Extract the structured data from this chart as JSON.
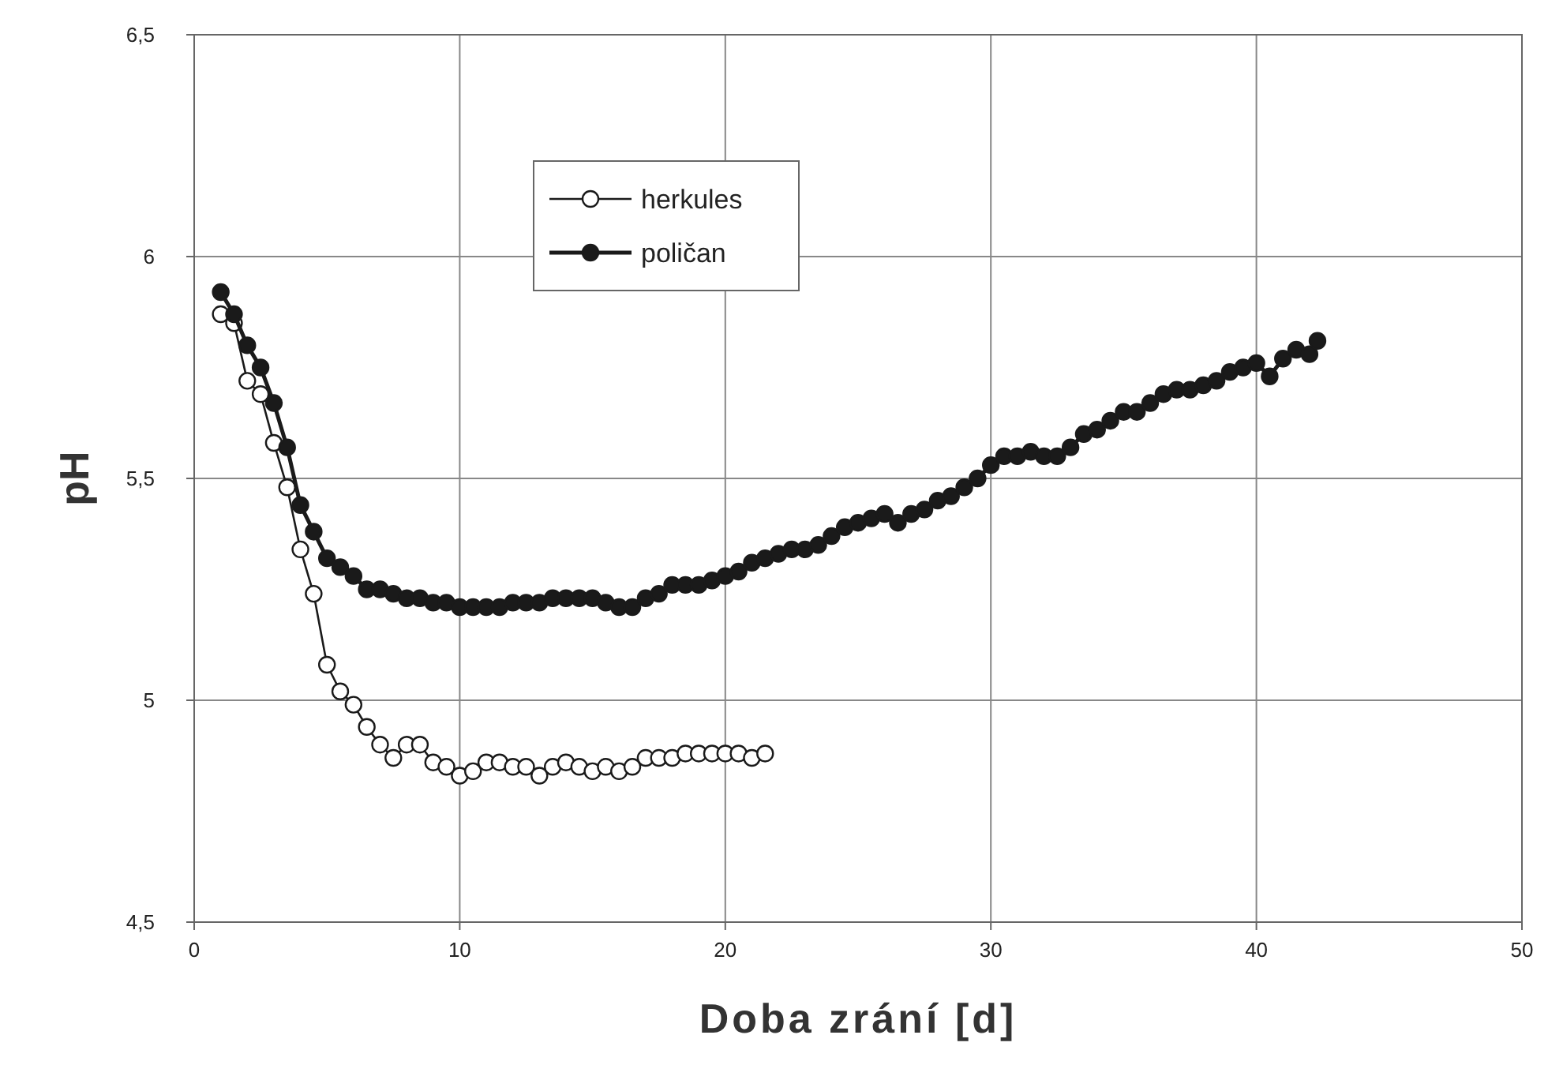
{
  "chart_data": {
    "type": "line",
    "xlabel": "Doba zrání [d]",
    "ylabel": "pH",
    "xlim": [
      0,
      50
    ],
    "xticks": [
      0,
      10,
      20,
      30,
      40,
      50
    ],
    "ylim": [
      4.5,
      6.5
    ],
    "yticks": [
      {
        "value": 4.5,
        "label": "4,5"
      },
      5,
      {
        "value": 5.5,
        "label": "5,5"
      },
      6,
      {
        "value": 6.5,
        "label": "6,5"
      }
    ],
    "grid": true,
    "legend": "top left",
    "line_style": "solid",
    "series": [
      {
        "name": "herkules",
        "color": "#ffffff",
        "marker": "circle",
        "x": [
          1,
          1.5,
          2,
          2.5,
          3,
          3.5,
          4,
          4.5,
          5,
          5.5,
          6,
          6.5,
          7,
          7.5,
          8,
          8.5,
          9,
          9.5,
          10,
          10.5,
          11,
          11.5,
          12,
          12.5,
          13,
          13.5,
          14,
          14.5,
          15,
          15.5,
          16,
          16.5,
          17,
          17.5,
          18,
          18.5,
          19,
          19.5,
          20,
          20.5,
          21,
          21.5
        ],
        "values": [
          5.87,
          5.85,
          5.72,
          5.69,
          5.58,
          5.48,
          5.34,
          5.24,
          5.08,
          5.02,
          4.99,
          4.94,
          4.9,
          4.87,
          4.9,
          4.9,
          4.86,
          4.85,
          4.83,
          4.84,
          4.86,
          4.86,
          4.85,
          4.85,
          4.83,
          4.85,
          4.86,
          4.85,
          4.84,
          4.85,
          4.84,
          4.85,
          4.87,
          4.87,
          4.87,
          4.88,
          4.88,
          4.88,
          4.88,
          4.88,
          4.87,
          4.88
        ]
      },
      {
        "name": "poličan",
        "color": "#1a1a1a",
        "marker": "circle",
        "x": [
          1,
          1.5,
          2,
          2.5,
          3,
          3.5,
          4,
          4.5,
          5,
          5.5,
          6,
          6.5,
          7,
          7.5,
          8,
          8.5,
          9,
          9.5,
          10,
          10.5,
          11,
          11.5,
          12,
          12.5,
          13,
          13.5,
          14,
          14.5,
          15,
          15.5,
          16,
          16.5,
          17,
          17.5,
          18,
          18.5,
          19,
          19.5,
          20,
          20.5,
          21,
          21.5,
          22,
          22.5,
          23,
          23.5,
          24,
          24.5,
          25,
          25.5,
          26,
          26.5,
          27,
          27.5,
          28,
          28.5,
          29,
          29.5,
          30,
          30.5,
          31,
          31.5,
          32,
          32.5,
          33,
          33.5,
          34,
          34.5,
          35,
          35.5,
          36,
          36.5,
          37,
          37.5,
          38,
          38.5,
          39,
          39.5,
          40,
          40.5,
          41,
          41.5,
          42,
          42.3
        ],
        "values": [
          5.92,
          5.87,
          5.8,
          5.75,
          5.67,
          5.57,
          5.44,
          5.38,
          5.32,
          5.3,
          5.28,
          5.25,
          5.25,
          5.24,
          5.23,
          5.23,
          5.22,
          5.22,
          5.21,
          5.21,
          5.21,
          5.21,
          5.22,
          5.22,
          5.22,
          5.23,
          5.23,
          5.23,
          5.23,
          5.22,
          5.21,
          5.21,
          5.23,
          5.24,
          5.26,
          5.26,
          5.26,
          5.27,
          5.28,
          5.29,
          5.31,
          5.32,
          5.33,
          5.34,
          5.34,
          5.35,
          5.37,
          5.39,
          5.4,
          5.41,
          5.42,
          5.4,
          5.42,
          5.43,
          5.45,
          5.46,
          5.48,
          5.5,
          5.53,
          5.55,
          5.55,
          5.56,
          5.55,
          5.55,
          5.57,
          5.6,
          5.61,
          5.63,
          5.65,
          5.65,
          5.67,
          5.69,
          5.7,
          5.7,
          5.71,
          5.72,
          5.74,
          5.75,
          5.76,
          5.73,
          5.77,
          5.79,
          5.78,
          5.81
        ]
      }
    ]
  }
}
